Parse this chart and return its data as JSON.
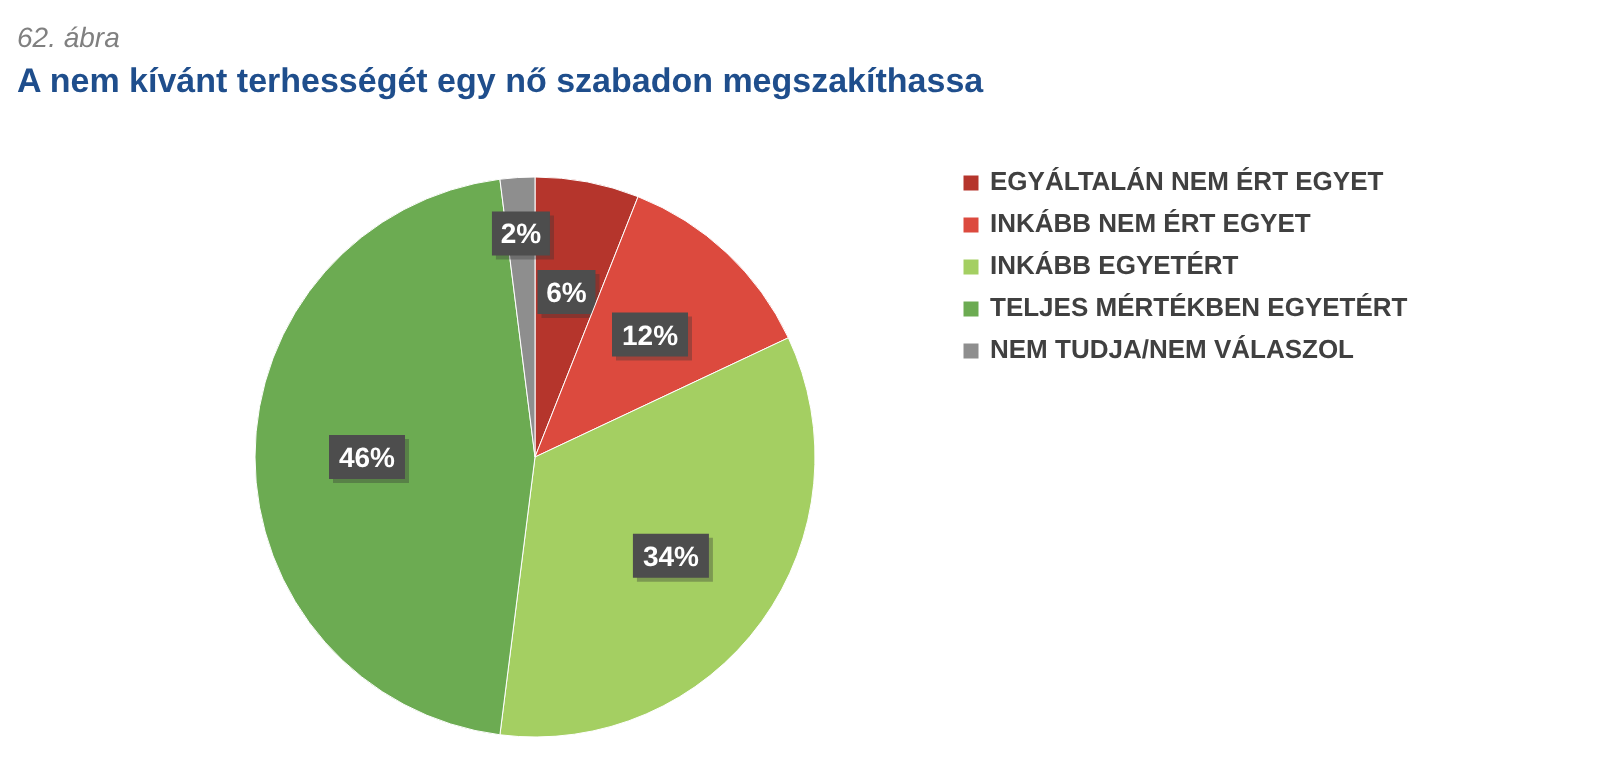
{
  "chart_data": {
    "type": "pie",
    "subtitle": "62. ábra",
    "title": "A nem kívánt terhességét egy nő szabadon megszakíthassa",
    "categories": [
      "EGYÁLTALÁN NEM ÉRT EGYET",
      "INKÁBB NEM ÉRT EGYET",
      "INKÁBB EGYETÉRT",
      "TELJES MÉRTÉKBEN EGYETÉRT",
      "NEM TUDJA/NEM VÁLASZOL"
    ],
    "values": [
      6,
      12,
      34,
      46,
      2
    ],
    "value_labels": [
      "6%",
      "12%",
      "34%",
      "46%",
      "2%"
    ],
    "colors": [
      "#b5352c",
      "#dc4a3e",
      "#a4cf62",
      "#6cab52",
      "#8e8e8e"
    ],
    "legend": "right"
  }
}
